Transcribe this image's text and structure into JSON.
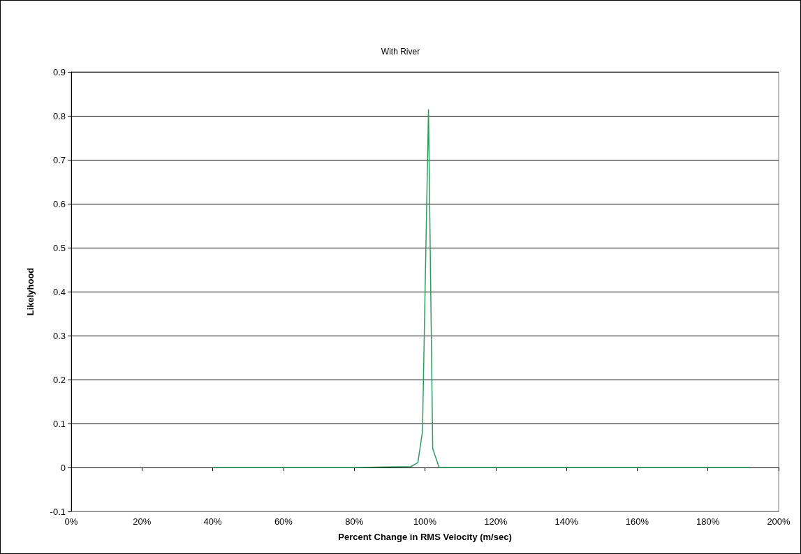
{
  "chart_data": {
    "type": "line",
    "title": "With River",
    "xlabel": "Percent Change in RMS Velocity (m/sec)",
    "ylabel": "Likelyhood",
    "series": [
      {
        "color": "#2e9e5e",
        "x": [
          40,
          60,
          80,
          90,
          96,
          98,
          99.3,
          101,
          102.2,
          104,
          120,
          150,
          192
        ],
        "values": [
          0,
          0,
          0,
          0.001,
          0.002,
          0.011,
          0.082,
          0.814,
          0.043,
          0,
          0,
          0,
          0
        ]
      }
    ],
    "xlim": [
      0,
      200
    ],
    "xticks": [
      {
        "value": 0,
        "label": "0%"
      },
      {
        "value": 20,
        "label": "20%"
      },
      {
        "value": 40,
        "label": "40%"
      },
      {
        "value": 60,
        "label": "60%"
      },
      {
        "value": 80,
        "label": "80%"
      },
      {
        "value": 100,
        "label": "100%"
      },
      {
        "value": 120,
        "label": "120%"
      },
      {
        "value": 140,
        "label": "140%"
      },
      {
        "value": 160,
        "label": "160%"
      },
      {
        "value": 180,
        "label": "180%"
      },
      {
        "value": 200,
        "label": "200%"
      }
    ],
    "ylim": [
      -0.1,
      0.9
    ],
    "yticks": [
      -0.1,
      0,
      0.1,
      0.2,
      0.3,
      0.4,
      0.5,
      0.6,
      0.7,
      0.8,
      0.9
    ],
    "grid": "y",
    "marker": "none",
    "line_style": "solid"
  }
}
